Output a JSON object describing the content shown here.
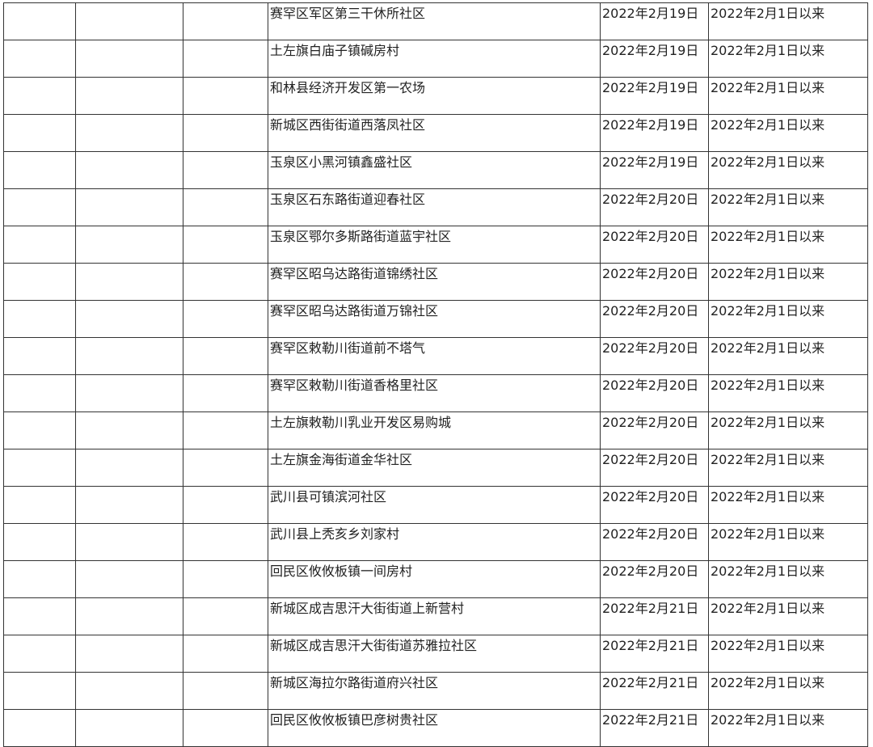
{
  "rows": [
    {
      "place": "赛罕区军区第三干休所社区",
      "date": "2022年2月19日",
      "since": "2022年2月1日以来"
    },
    {
      "place": "土左旗白庙子镇碱房村",
      "date": "2022年2月19日",
      "since": "2022年2月1日以来"
    },
    {
      "place": "和林县经济开发区第一农场",
      "date": "2022年2月19日",
      "since": "2022年2月1日以来"
    },
    {
      "place": "新城区西街街道西落凤社区",
      "date": "2022年2月19日",
      "since": "2022年2月1日以来"
    },
    {
      "place": "玉泉区小黑河镇鑫盛社区",
      "date": "2022年2月19日",
      "since": "2022年2月1日以来"
    },
    {
      "place": "玉泉区石东路街道迎春社区",
      "date": "2022年2月20日",
      "since": "2022年2月1日以来"
    },
    {
      "place": "玉泉区鄂尔多斯路街道蓝宇社区",
      "date": "2022年2月20日",
      "since": "2022年2月1日以来"
    },
    {
      "place": "赛罕区昭乌达路街道锦绣社区",
      "date": "2022年2月20日",
      "since": "2022年2月1日以来"
    },
    {
      "place": "赛罕区昭乌达路街道万锦社区",
      "date": "2022年2月20日",
      "since": "2022年2月1日以来"
    },
    {
      "place": "赛罕区敕勒川街道前不塔气",
      "date": "2022年2月20日",
      "since": "2022年2月1日以来"
    },
    {
      "place": "赛罕区敕勒川街道香格里社区",
      "date": "2022年2月20日",
      "since": "2022年2月1日以来"
    },
    {
      "place": "土左旗敕勒川乳业开发区易购城",
      "date": "2022年2月20日",
      "since": "2022年2月1日以来"
    },
    {
      "place": "土左旗金海街道金华社区",
      "date": "2022年2月20日",
      "since": "2022年2月1日以来"
    },
    {
      "place": "武川县可镇滨河社区",
      "date": "2022年2月20日",
      "since": "2022年2月1日以来"
    },
    {
      "place": "武川县上秃亥乡刘家村",
      "date": "2022年2月20日",
      "since": "2022年2月1日以来"
    },
    {
      "place": "回民区攸攸板镇一间房村",
      "date": "2022年2月20日",
      "since": "2022年2月1日以来"
    },
    {
      "place": "新城区成吉思汗大街街道上新营村",
      "date": "2022年2月21日",
      "since": "2022年2月1日以来"
    },
    {
      "place": "新城区成吉思汗大街街道苏雅拉社区",
      "date": "2022年2月21日",
      "since": "2022年2月1日以来"
    },
    {
      "place": "新城区海拉尔路街道府兴社区",
      "date": "2022年2月21日",
      "since": "2022年2月1日以来"
    },
    {
      "place": "回民区攸攸板镇巴彦树贵社区",
      "date": "2022年2月21日",
      "since": "2022年2月1日以来"
    }
  ]
}
